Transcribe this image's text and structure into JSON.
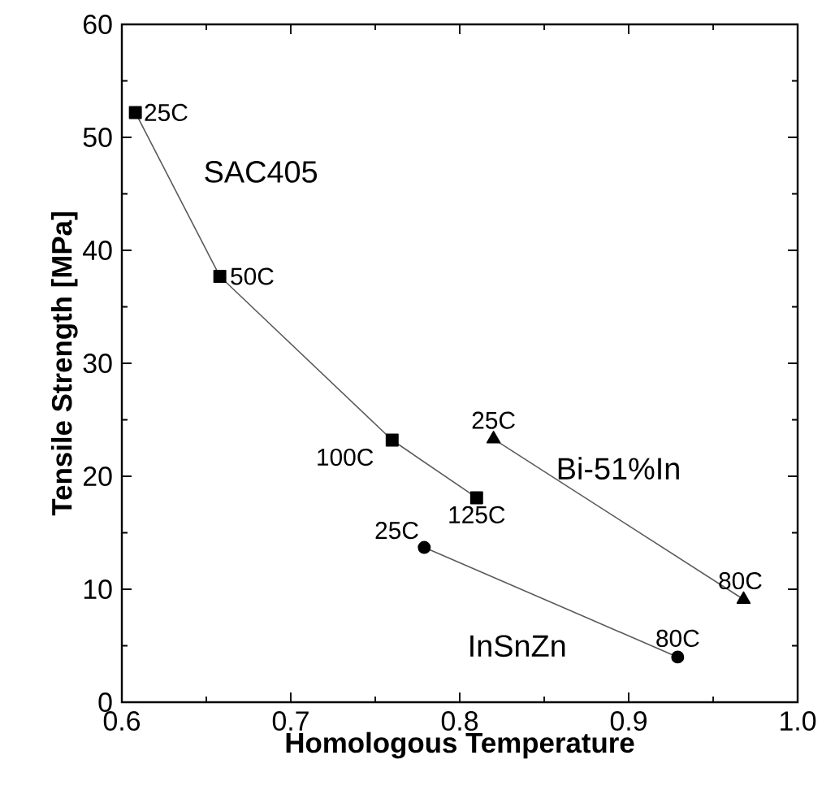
{
  "chart_data": {
    "type": "line",
    "xlabel": "Homologous Temperature",
    "ylabel": "Tensile Strength [MPa]",
    "xlim": [
      0.6,
      1.0
    ],
    "ylim": [
      0,
      60
    ],
    "xticks": [
      {
        "value": 0.6,
        "label": "0.6"
      },
      {
        "value": 0.7,
        "label": "0.7"
      },
      {
        "value": 0.8,
        "label": "0.8"
      },
      {
        "value": 0.9,
        "label": "0.9"
      },
      {
        "value": 1.0,
        "label": "1.0"
      }
    ],
    "yticks": [
      0,
      10,
      20,
      30,
      40,
      50,
      60
    ],
    "grid": false,
    "legend": false,
    "line_style": "solid",
    "series": [
      {
        "name": "SAC405",
        "color": "#000000",
        "marker": "square",
        "x": [
          0.608,
          0.658,
          0.76,
          0.81
        ],
        "values": [
          52.2,
          37.7,
          23.2,
          18.1
        ]
      },
      {
        "name": "Bi-51%In",
        "color": "#000000",
        "marker": "triangle",
        "x": [
          0.82,
          0.968
        ],
        "values": [
          23.3,
          9.1
        ]
      },
      {
        "name": "InSnZn",
        "color": "#000000",
        "marker": "circle",
        "x": [
          0.779,
          0.929
        ],
        "values": [
          13.7,
          4.0
        ]
      }
    ],
    "annotations": [
      {
        "text": "25C",
        "x": 0.608,
        "y": 52.2
      },
      {
        "text": "50C",
        "x": 0.658,
        "y": 37.7
      },
      {
        "text": "100C",
        "x": 0.76,
        "y": 23.2
      },
      {
        "text": "125C",
        "x": 0.81,
        "y": 18.1
      },
      {
        "text": "25C",
        "x": 0.82,
        "y": 23.3
      },
      {
        "text": "80C",
        "x": 0.968,
        "y": 9.1
      },
      {
        "text": "25C",
        "x": 0.779,
        "y": 13.7
      },
      {
        "text": "80C",
        "x": 0.929,
        "y": 4.0
      }
    ]
  }
}
